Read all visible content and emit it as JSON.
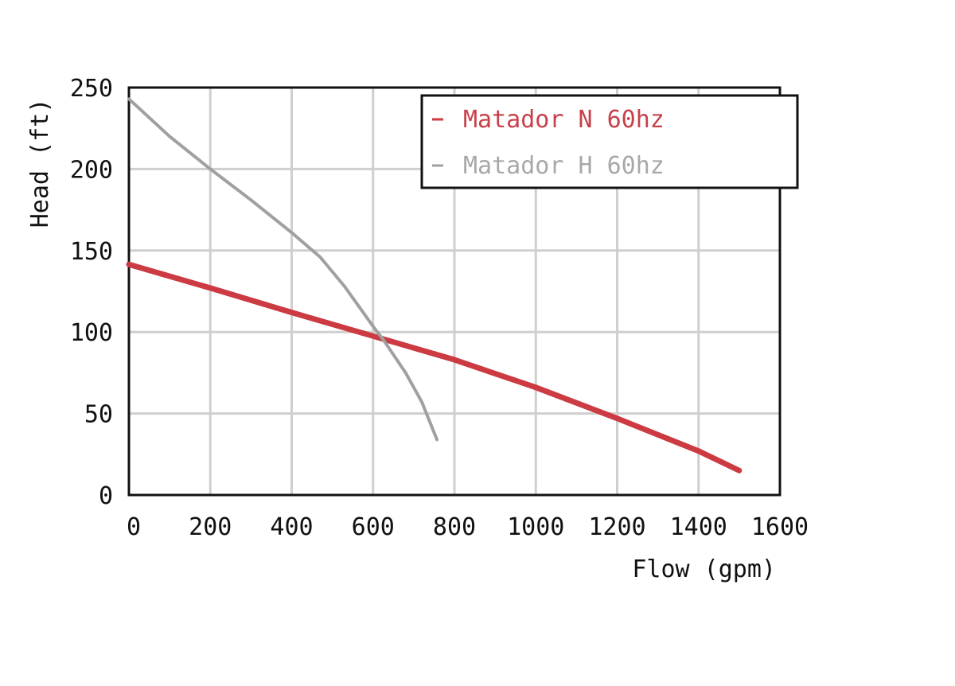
{
  "chart_data": {
    "type": "line",
    "title": "",
    "xlabel": "Flow (gpm)",
    "ylabel": "Head (ft)",
    "xlim": [
      0,
      1600
    ],
    "ylim": [
      0,
      250
    ],
    "xticks": [
      "0",
      "200",
      "400",
      "600",
      "800",
      "1000",
      "1200",
      "1400",
      "1600"
    ],
    "yticks": [
      "0",
      "50",
      "100",
      "150",
      "200",
      "250"
    ],
    "grid": true,
    "legend_position": "top-right",
    "series": [
      {
        "name": "Matador N 60hz",
        "color": "#cc3a42",
        "x": [
          0,
          200,
          400,
          600,
          800,
          1000,
          1200,
          1400,
          1500
        ],
        "y": [
          141.5,
          127,
          112,
          97.5,
          83,
          66,
          47,
          27,
          15
        ]
      },
      {
        "name": "Matador H 60hz",
        "color": "#a0a0a0",
        "x": [
          0,
          100,
          200,
          300,
          400,
          470,
          530,
          600,
          626,
          680,
          720,
          757
        ],
        "y": [
          243,
          220,
          200,
          181,
          161,
          146,
          128,
          103.5,
          95,
          75,
          57,
          34
        ]
      }
    ]
  }
}
